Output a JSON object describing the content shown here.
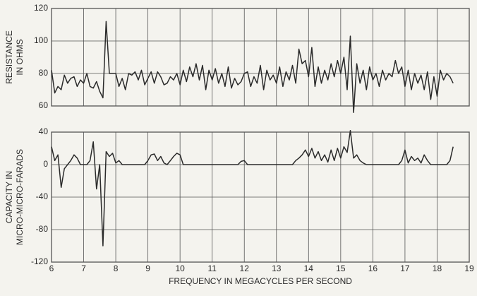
{
  "chart_data": [
    {
      "type": "line",
      "ylabel": [
        "RESISTANCE",
        "IN OHMS"
      ],
      "color": "#2a2a2a",
      "grid": true,
      "xlim": [
        6,
        19
      ],
      "xticks": [
        6,
        7,
        8,
        9,
        10,
        11,
        12,
        13,
        14,
        15,
        16,
        17,
        18,
        19
      ],
      "ylim": [
        60,
        120
      ],
      "yticks": [
        60,
        80,
        100,
        120
      ],
      "x": [
        6,
        6.1,
        6.2,
        6.3,
        6.4,
        6.5,
        6.6,
        6.7,
        6.8,
        6.9,
        7,
        7.1,
        7.2,
        7.3,
        7.4,
        7.5,
        7.6,
        7.7,
        7.8,
        7.9,
        8,
        8.1,
        8.2,
        8.3,
        8.4,
        8.5,
        8.6,
        8.7,
        8.8,
        8.9,
        9,
        9.1,
        9.2,
        9.3,
        9.4,
        9.5,
        9.6,
        9.7,
        9.8,
        9.9,
        10,
        10.1,
        10.2,
        10.3,
        10.4,
        10.5,
        10.6,
        10.7,
        10.8,
        10.9,
        11,
        11.1,
        11.2,
        11.3,
        11.4,
        11.5,
        11.6,
        11.7,
        11.8,
        11.9,
        12,
        12.1,
        12.2,
        12.3,
        12.4,
        12.5,
        12.6,
        12.7,
        12.8,
        12.9,
        13,
        13.1,
        13.2,
        13.3,
        13.4,
        13.5,
        13.6,
        13.7,
        13.8,
        13.9,
        14,
        14.1,
        14.2,
        14.3,
        14.4,
        14.5,
        14.6,
        14.7,
        14.8,
        14.9,
        15,
        15.1,
        15.2,
        15.3,
        15.4,
        15.5,
        15.6,
        15.7,
        15.8,
        15.9,
        16,
        16.1,
        16.2,
        16.3,
        16.4,
        16.5,
        16.6,
        16.7,
        16.8,
        16.9,
        17,
        17.1,
        17.2,
        17.3,
        17.4,
        17.5,
        17.6,
        17.7,
        17.8,
        17.9,
        18,
        18.1,
        18.2,
        18.3,
        18.4,
        18.5
      ],
      "values": [
        82,
        68,
        72,
        70,
        79,
        74,
        77,
        78,
        72,
        76,
        74,
        80,
        72,
        71,
        75,
        69,
        65,
        112,
        80,
        80,
        80,
        72,
        77,
        70,
        80,
        79,
        81,
        76,
        82,
        73,
        77,
        81,
        74,
        81,
        78,
        73,
        74,
        78,
        76,
        80,
        73,
        82,
        75,
        84,
        78,
        86,
        76,
        85,
        70,
        82,
        76,
        83,
        74,
        80,
        72,
        84,
        71,
        77,
        73,
        75,
        80,
        81,
        72,
        78,
        74,
        85,
        70,
        82,
        76,
        79,
        74,
        84,
        72,
        81,
        76,
        85,
        74,
        95,
        86,
        88,
        78,
        96,
        72,
        84,
        74,
        82,
        76,
        86,
        78,
        88,
        80,
        90,
        70,
        103,
        56,
        86,
        74,
        82,
        70,
        84,
        76,
        80,
        72,
        82,
        76,
        80,
        78,
        88,
        80,
        84,
        72,
        82,
        70,
        80,
        74,
        79,
        70,
        81,
        64,
        78,
        66,
        82,
        76,
        80,
        78,
        74
      ]
    },
    {
      "type": "line",
      "ylabel": [
        "CAPACITY IN",
        "MICRO-MICRO-FARADS"
      ],
      "xlabel": "FREQUENCY IN MEGACYCLES PER SECOND",
      "color": "#2a2a2a",
      "grid": true,
      "xlim": [
        6,
        19
      ],
      "xticks": [
        6,
        7,
        8,
        9,
        10,
        11,
        12,
        13,
        14,
        15,
        16,
        17,
        18,
        19
      ],
      "ylim": [
        -120,
        40
      ],
      "yticks": [
        -120,
        -80,
        -40,
        0,
        40
      ],
      "x": [
        6,
        6.1,
        6.2,
        6.3,
        6.4,
        6.5,
        6.6,
        6.7,
        6.8,
        6.9,
        7,
        7.1,
        7.2,
        7.3,
        7.4,
        7.5,
        7.6,
        7.7,
        7.8,
        7.9,
        8,
        8.1,
        8.2,
        8.3,
        8.4,
        8.5,
        8.6,
        8.7,
        8.8,
        8.9,
        9,
        9.1,
        9.2,
        9.3,
        9.4,
        9.5,
        9.6,
        9.7,
        9.8,
        9.9,
        10,
        10.1,
        10.2,
        10.3,
        10.4,
        10.5,
        10.6,
        10.7,
        10.8,
        10.9,
        11,
        11.1,
        11.2,
        11.3,
        11.4,
        11.5,
        11.6,
        11.7,
        11.8,
        11.9,
        12,
        12.1,
        12.2,
        12.3,
        12.4,
        12.5,
        12.6,
        12.7,
        12.8,
        12.9,
        13,
        13.1,
        13.2,
        13.3,
        13.4,
        13.5,
        13.6,
        13.7,
        13.8,
        13.9,
        14,
        14.1,
        14.2,
        14.3,
        14.4,
        14.5,
        14.6,
        14.7,
        14.8,
        14.9,
        15,
        15.1,
        15.2,
        15.3,
        15.4,
        15.5,
        15.6,
        15.7,
        15.8,
        15.9,
        16,
        16.1,
        16.2,
        16.3,
        16.4,
        16.5,
        16.6,
        16.7,
        16.8,
        16.9,
        17,
        17.1,
        17.2,
        17.3,
        17.4,
        17.5,
        17.6,
        17.7,
        17.8,
        17.9,
        18,
        18.1,
        18.2,
        18.3,
        18.4,
        18.5
      ],
      "values": [
        22,
        5,
        12,
        -28,
        -5,
        0,
        5,
        12,
        8,
        0,
        0,
        0,
        5,
        28,
        -30,
        0,
        -100,
        16,
        10,
        14,
        2,
        5,
        0,
        0,
        0,
        0,
        0,
        0,
        0,
        0,
        5,
        12,
        13,
        5,
        10,
        2,
        0,
        5,
        10,
        14,
        12,
        0,
        0,
        0,
        0,
        0,
        0,
        0,
        0,
        0,
        0,
        0,
        0,
        0,
        0,
        0,
        0,
        0,
        0,
        4,
        5,
        0,
        0,
        0,
        0,
        0,
        0,
        0,
        0,
        0,
        0,
        0,
        0,
        0,
        0,
        0,
        5,
        8,
        12,
        18,
        10,
        20,
        8,
        16,
        5,
        12,
        3,
        18,
        5,
        20,
        8,
        22,
        15,
        42,
        8,
        12,
        5,
        2,
        0,
        0,
        0,
        0,
        0,
        0,
        0,
        0,
        0,
        0,
        0,
        5,
        18,
        2,
        10,
        5,
        8,
        2,
        12,
        5,
        0,
        0,
        0,
        0,
        0,
        0,
        5,
        22
      ]
    }
  ]
}
